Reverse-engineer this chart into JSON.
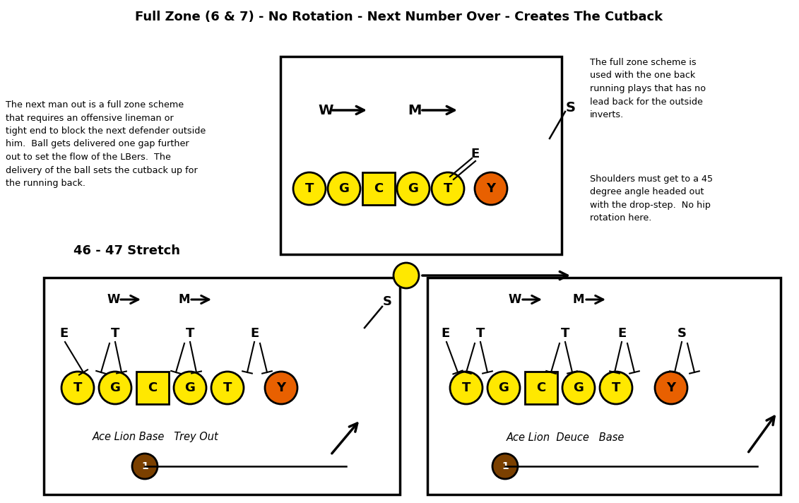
{
  "title": "Full Zone (6 & 7) - No Rotation - Next Number Over - Creates The Cutback",
  "title_fontsize": 13,
  "bg_color": "#ffffff",
  "yellow": "#FFE800",
  "orange": "#E86000",
  "brown": "#7B4000",
  "left_text": "The next man out is a full zone scheme\nthat requires an offensive lineman or\ntight end to block the next defender outside\nhim.  Ball gets delivered one gap further\nout to set the flow of the LBers.  The\ndelivery of the ball sets the cutback up for\nthe running back.",
  "right_text_top": "The full zone scheme is\nused with the one back\nrunning plays that has no\nlead back for the outside\ninverts.",
  "right_text_bottom": "Shoulders must get to a 45\ndegree angle headed out\nwith the drop-step.  No hip\nrotation here.",
  "bottom_left_label": "46 - 47 Stretch",
  "diagram1_labels_bottom": "Ace Lion Base   Trey Out",
  "diagram2_labels_bottom": "Ace Lion  Deuce   Base"
}
